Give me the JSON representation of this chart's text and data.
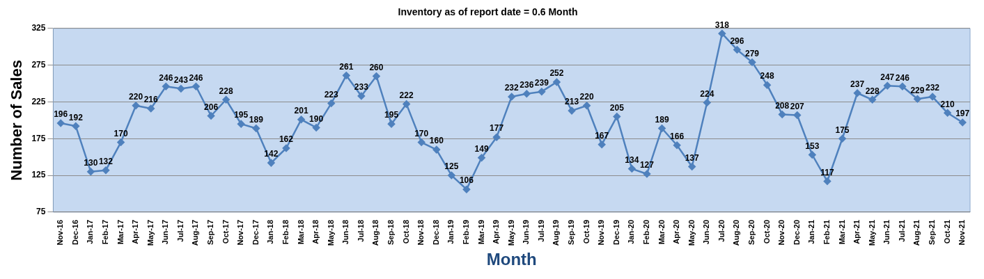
{
  "chart_data": {
    "type": "line",
    "title": "Inventory as of report date = 0.6 Month",
    "xlabel": "Month",
    "ylabel": "Number of Sales",
    "categories": [
      "Nov-16",
      "Dec-16",
      "Jan-17",
      "Feb-17",
      "Mar-17",
      "Apr-17",
      "May-17",
      "Jun-17",
      "Jul-17",
      "Aug-17",
      "Sep-17",
      "Oct-17",
      "Nov-17",
      "Dec-17",
      "Jan-18",
      "Feb-18",
      "Mar-18",
      "Apr-18",
      "May-18",
      "Jun-18",
      "Jul-18",
      "Aug-18",
      "Sep-18",
      "Oct-18",
      "Nov-18",
      "Dec-18",
      "Jan-19",
      "Feb-19",
      "Mar-19",
      "Apr-19",
      "May-19",
      "Jun-19",
      "Jul-19",
      "Aug-19",
      "Sep-19",
      "Oct-19",
      "Nov-19",
      "Dec-19",
      "Jan-20",
      "Feb-20",
      "Mar-20",
      "Apr-20",
      "May-20",
      "Jun-20",
      "Jul-20",
      "Aug-20",
      "Sep-20",
      "Oct-20",
      "Nov-20",
      "Dec-20",
      "Jan-21",
      "Feb-21",
      "Mar-21",
      "Apr-21",
      "May-21",
      "Jun-21",
      "Jul-21",
      "Aug-21",
      "Sep-21",
      "Oct-21",
      "Nov-21"
    ],
    "series": [
      {
        "color": "#4f81bd",
        "values": [
          196,
          192,
          130,
          132,
          170,
          220,
          216,
          246,
          243,
          246,
          206,
          228,
          195,
          189,
          142,
          162,
          201,
          190,
          223,
          261,
          233,
          260,
          195,
          222,
          170,
          160,
          125,
          106,
          149,
          177,
          232,
          236,
          239,
          252,
          213,
          220,
          167,
          205,
          134,
          127,
          189,
          166,
          137,
          224,
          318,
          296,
          279,
          248,
          208,
          207,
          153,
          117,
          175,
          237,
          228,
          247,
          246,
          229,
          232,
          210,
          197
        ]
      }
    ],
    "ylim": [
      75,
      325
    ],
    "yticks": [
      75,
      125,
      175,
      225,
      275,
      325
    ],
    "grid": "y",
    "legend": false,
    "marker": "diamond",
    "line_style": "solid",
    "data_labels": true
  }
}
